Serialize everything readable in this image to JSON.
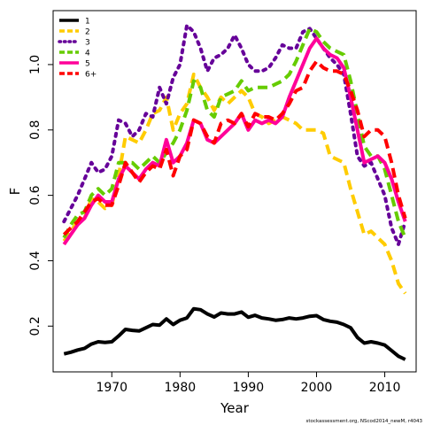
{
  "chart_data": {
    "type": "line",
    "title": "",
    "xlabel": "Year",
    "ylabel": "F",
    "xlim": [
      1961.4,
      2014.6
    ],
    "ylim": [
      0.06,
      1.165
    ],
    "xticks": [
      1970,
      1980,
      1990,
      2000,
      2010
    ],
    "yticks": [
      0.2,
      0.4,
      0.6,
      0.8,
      1.0
    ],
    "xtick_labels": [
      "1970",
      "1980",
      "1990",
      "2000",
      "2010"
    ],
    "ytick_labels": [
      "0.2",
      "0.4",
      "0.6",
      "0.8",
      "1.0"
    ],
    "grid": false,
    "legend_position": "top-left",
    "footer": "stockassessment.org, NScod2014_newM, r4043",
    "x": [
      1963,
      1964,
      1965,
      1966,
      1967,
      1968,
      1969,
      1970,
      1971,
      1972,
      1973,
      1974,
      1975,
      1976,
      1977,
      1978,
      1979,
      1980,
      1981,
      1982,
      1983,
      1984,
      1985,
      1986,
      1987,
      1988,
      1989,
      1990,
      1991,
      1992,
      1993,
      1994,
      1995,
      1996,
      1997,
      1998,
      1999,
      2000,
      2001,
      2002,
      2003,
      2004,
      2005,
      2006,
      2007,
      2008,
      2009,
      2010,
      2011,
      2012,
      2013
    ],
    "series": [
      {
        "name": "1",
        "color": "#000000",
        "dash": "solid",
        "values": [
          0.115,
          0.12,
          0.127,
          0.132,
          0.145,
          0.152,
          0.15,
          0.152,
          0.17,
          0.19,
          0.187,
          0.185,
          0.195,
          0.205,
          0.203,
          0.222,
          0.205,
          0.218,
          0.225,
          0.253,
          0.25,
          0.237,
          0.228,
          0.24,
          0.237,
          0.237,
          0.243,
          0.227,
          0.233,
          0.225,
          0.222,
          0.218,
          0.22,
          0.225,
          0.222,
          0.225,
          0.23,
          0.232,
          0.22,
          0.215,
          0.212,
          0.205,
          0.195,
          0.165,
          0.148,
          0.152,
          0.148,
          0.142,
          0.125,
          0.108,
          0.098
        ]
      },
      {
        "name": "2",
        "color": "#FFCC00",
        "dash": "dashed",
        "values": [
          0.46,
          0.49,
          0.52,
          0.53,
          0.59,
          0.58,
          0.56,
          0.57,
          0.66,
          0.78,
          0.77,
          0.76,
          0.8,
          0.85,
          0.86,
          0.9,
          0.8,
          0.85,
          0.88,
          0.97,
          0.93,
          0.9,
          0.86,
          0.9,
          0.88,
          0.9,
          0.92,
          0.9,
          0.85,
          0.84,
          0.82,
          0.83,
          0.84,
          0.83,
          0.82,
          0.8,
          0.8,
          0.8,
          0.79,
          0.72,
          0.71,
          0.7,
          0.62,
          0.55,
          0.48,
          0.49,
          0.47,
          0.45,
          0.4,
          0.33,
          0.3
        ]
      },
      {
        "name": "3",
        "color": "#660099",
        "dash": "dotted",
        "values": [
          0.52,
          0.56,
          0.6,
          0.65,
          0.7,
          0.67,
          0.68,
          0.72,
          0.83,
          0.82,
          0.78,
          0.8,
          0.85,
          0.84,
          0.93,
          0.88,
          0.96,
          1.0,
          1.12,
          1.1,
          1.05,
          0.98,
          1.02,
          1.03,
          1.05,
          1.09,
          1.05,
          1.0,
          0.98,
          0.98,
          0.99,
          1.02,
          1.06,
          1.05,
          1.05,
          1.1,
          1.11,
          1.08,
          1.05,
          1.02,
          1.0,
          0.97,
          0.85,
          0.72,
          0.69,
          0.7,
          0.65,
          0.6,
          0.5,
          0.45,
          0.52
        ]
      },
      {
        "name": "4",
        "color": "#66CC00",
        "dash": "dashed",
        "values": [
          0.47,
          0.51,
          0.54,
          0.55,
          0.6,
          0.62,
          0.6,
          0.62,
          0.7,
          0.7,
          0.7,
          0.68,
          0.7,
          0.72,
          0.7,
          0.73,
          0.76,
          0.8,
          0.86,
          0.95,
          0.93,
          0.86,
          0.84,
          0.9,
          0.91,
          0.92,
          0.95,
          0.92,
          0.93,
          0.93,
          0.93,
          0.94,
          0.95,
          0.97,
          1.01,
          1.06,
          1.11,
          1.1,
          1.07,
          1.05,
          1.04,
          1.03,
          0.95,
          0.85,
          0.75,
          0.72,
          0.72,
          0.68,
          0.6,
          0.52,
          0.47
        ]
      },
      {
        "name": "5",
        "color": "#FF0099",
        "dash": "solid",
        "values": [
          0.45,
          0.48,
          0.51,
          0.53,
          0.57,
          0.6,
          0.58,
          0.58,
          0.65,
          0.69,
          0.67,
          0.65,
          0.68,
          0.7,
          0.69,
          0.77,
          0.7,
          0.72,
          0.76,
          0.83,
          0.82,
          0.77,
          0.76,
          0.78,
          0.8,
          0.82,
          0.85,
          0.8,
          0.83,
          0.82,
          0.83,
          0.82,
          0.84,
          0.9,
          0.95,
          1.0,
          1.05,
          1.08,
          1.05,
          1.03,
          1.02,
          0.99,
          0.9,
          0.8,
          0.7,
          0.71,
          0.72,
          0.7,
          0.65,
          0.58,
          0.52
        ]
      },
      {
        "name": "6+",
        "color": "#FF0000",
        "dash": "dashed",
        "values": [
          0.48,
          0.5,
          0.52,
          0.55,
          0.58,
          0.59,
          0.57,
          0.57,
          0.63,
          0.7,
          0.67,
          0.64,
          0.67,
          0.69,
          0.68,
          0.74,
          0.66,
          0.72,
          0.74,
          0.83,
          0.82,
          0.78,
          0.76,
          0.82,
          0.83,
          0.82,
          0.85,
          0.81,
          0.85,
          0.84,
          0.84,
          0.83,
          0.85,
          0.88,
          0.92,
          0.93,
          0.98,
          1.01,
          0.99,
          0.98,
          0.98,
          0.97,
          0.92,
          0.86,
          0.78,
          0.8,
          0.8,
          0.78,
          0.7,
          0.6,
          0.53
        ]
      }
    ]
  }
}
